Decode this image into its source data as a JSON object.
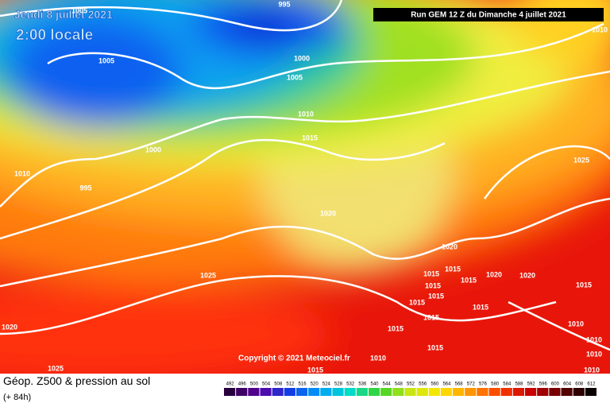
{
  "header": {
    "date": "Jeudi 8 juillet 2021",
    "time": "2:00 locale",
    "run": "Run GEM 12 Z du Dimanche 4 juillet 2021"
  },
  "isobars": [
    995,
    1005,
    1010,
    1005,
    1000,
    1005,
    1010,
    1015,
    1000,
    1010,
    995,
    1025,
    1020,
    1020,
    1015,
    1015,
    1015,
    1015,
    1020,
    1020,
    1025,
    1015,
    1015,
    1015,
    1015,
    1015,
    1015,
    1020,
    1015,
    1010,
    1010,
    1010,
    1010,
    1025,
    1015,
    1010
  ],
  "footer": {
    "title": "Géop. Z500 & pression au sol",
    "step": "(+ 84h)",
    "copyright": "Copyright © 2021 Meteociel.fr"
  },
  "colorbar": [
    492,
    496,
    500,
    504,
    508,
    512,
    516,
    520,
    524,
    528,
    532,
    536,
    540,
    544,
    548,
    552,
    556,
    560,
    564,
    568,
    572,
    576,
    580,
    584,
    588,
    592,
    596,
    600,
    604,
    608,
    612
  ]
}
